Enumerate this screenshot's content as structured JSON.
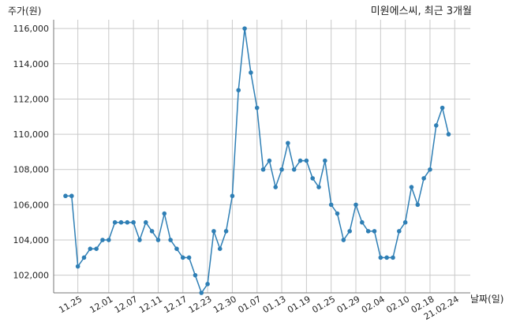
{
  "chart_data": {
    "type": "line",
    "title": "미원에스씨, 최근 3개월",
    "ylabel": "주가(원)",
    "xlabel": "날짜(일)",
    "ylim": [
      101000,
      116500
    ],
    "y_ticks": [
      "102,000",
      "104,000",
      "106,000",
      "108,000",
      "110,000",
      "112,000",
      "114,000",
      "116,000"
    ],
    "y_tick_values": [
      102000,
      104000,
      106000,
      108000,
      110000,
      112000,
      114000,
      116000
    ],
    "x_tick_labels": [
      "11.25",
      "12.01",
      "12.07",
      "12.11",
      "12.17",
      "12.23",
      "12.30",
      "01.07",
      "01.13",
      "01.19",
      "01.25",
      "01.29",
      "02.04",
      "02.10",
      "02.18",
      "21.02.24"
    ],
    "x_tick_index": [
      2,
      7,
      11,
      15,
      19,
      23,
      27,
      31,
      35,
      39,
      43,
      47,
      51,
      55,
      59,
      63
    ],
    "grid": true,
    "series": [
      {
        "color": "#2f7fb5",
        "values": [
          106500,
          106500,
          102500,
          103000,
          103500,
          103500,
          104000,
          104000,
          105000,
          105000,
          105000,
          105000,
          104000,
          105000,
          104500,
          104000,
          105500,
          104000,
          103500,
          103000,
          103000,
          102000,
          101000,
          101500,
          104500,
          103500,
          104500,
          106500,
          112500,
          116000,
          113500,
          111500,
          108000,
          108500,
          107000,
          108000,
          109500,
          108000,
          108500,
          108500,
          107500,
          107000,
          108500,
          106000,
          105500,
          104000,
          104500,
          106000,
          105000,
          104500,
          104500,
          103000,
          103000,
          103000,
          104500,
          105000,
          107000,
          106000,
          107500,
          108000,
          110500,
          111500,
          110000
        ]
      }
    ]
  }
}
